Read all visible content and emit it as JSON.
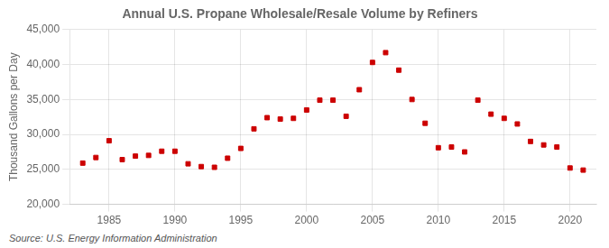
{
  "chart_data": {
    "type": "scatter",
    "title": "Annual U.S. Propane Wholesale/Resale Volume by Refiners",
    "ylabel": "Thousand Gallons per Day",
    "source": "Source: U.S. Energy Information Administration",
    "color": "#cc0000",
    "marker": "square",
    "grid": true,
    "xlim": [
      1982,
      2022
    ],
    "xticks": [
      1985,
      1990,
      1995,
      2000,
      2005,
      2010,
      2015,
      2020
    ],
    "ylim": [
      20000,
      45000
    ],
    "yticks": [
      {
        "value": 20000,
        "label": "20,000"
      },
      {
        "value": 25000,
        "label": "25,000"
      },
      {
        "value": 30000,
        "label": "30,000"
      },
      {
        "value": 35000,
        "label": "35,000"
      },
      {
        "value": 40000,
        "label": "40,000"
      },
      {
        "value": 45000,
        "label": "45,000"
      }
    ],
    "x": [
      1983,
      1984,
      1985,
      1986,
      1987,
      1988,
      1989,
      1990,
      1991,
      1992,
      1993,
      1994,
      1995,
      1996,
      1997,
      1998,
      1999,
      2000,
      2001,
      2002,
      2003,
      2004,
      2005,
      2006,
      2007,
      2008,
      2009,
      2010,
      2011,
      2012,
      2013,
      2014,
      2015,
      2016,
      2017,
      2018,
      2019,
      2020,
      2021
    ],
    "values": [
      25900,
      26700,
      29100,
      26400,
      26900,
      27000,
      27600,
      27600,
      25800,
      25400,
      25300,
      26600,
      28000,
      30800,
      32400,
      32200,
      32300,
      33500,
      34900,
      34900,
      32600,
      36400,
      40300,
      41700,
      39200,
      35000,
      31600,
      28100,
      28200,
      27500,
      34900,
      32900,
      32300,
      31500,
      29000,
      28500,
      28200,
      25200,
      24900
    ]
  }
}
